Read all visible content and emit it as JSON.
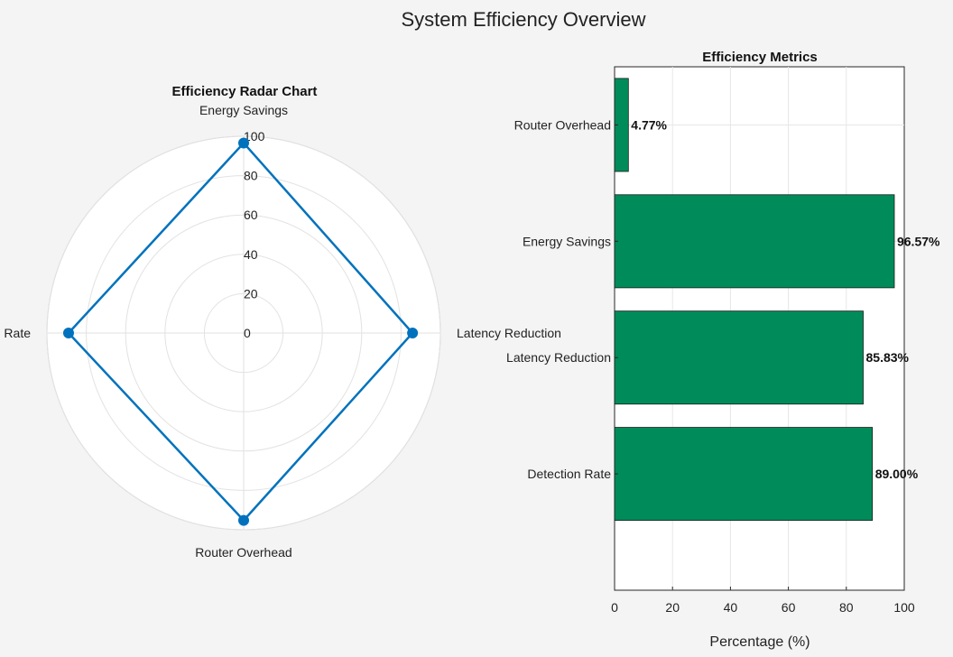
{
  "figure": {
    "title": "System Efficiency Overview"
  },
  "chart_data": [
    {
      "type": "radar",
      "title": "Efficiency Radar Chart",
      "categories": [
        "Energy Savings",
        "Latency Reduction",
        "Router Overhead",
        "Detection Rate"
      ],
      "series": [
        {
          "values": [
            96.57,
            85.83,
            95.23,
            89.0
          ],
          "color": "#0072bd"
        }
      ],
      "rlim": [
        0,
        100
      ],
      "rticks": [
        0,
        20,
        40,
        60,
        80,
        100
      ],
      "grid": true
    },
    {
      "type": "bar",
      "orientation": "horizontal",
      "title": "Efficiency Metrics",
      "categories": [
        "Detection Rate",
        "Latency Reduction",
        "Energy Savings",
        "Router Overhead"
      ],
      "values": [
        89.0,
        85.83,
        96.57,
        4.77
      ],
      "data_labels": [
        "89.00%",
        "85.83%",
        "96.57%",
        "4.77%"
      ],
      "xlabel": "Percentage (%)",
      "ylabel": "",
      "xlim": [
        0,
        100
      ],
      "xticks": [
        0,
        20,
        40,
        60,
        80,
        100
      ],
      "bar_color": "#008c5a",
      "grid": true
    }
  ]
}
